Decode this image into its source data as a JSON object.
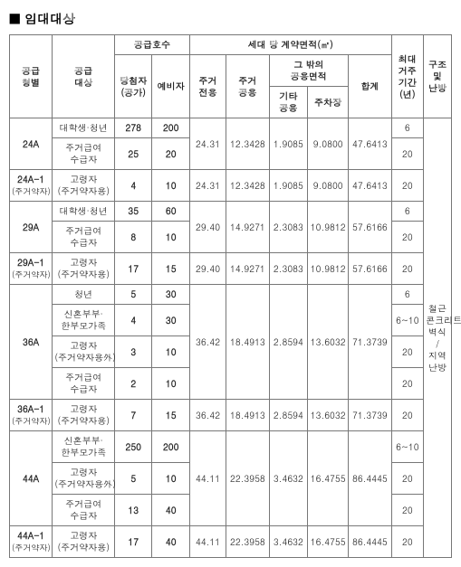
{
  "title": "■ 임대대상",
  "headers": {
    "type": "공급\n형별",
    "target": "공급\n대상",
    "units": "공급호수",
    "units_a": "당첨자\n(공가)",
    "units_b": "예비자",
    "contract_area": "세대 당 계약면적(㎡)",
    "a1": "주거\n전용",
    "a2": "주거\n공용",
    "etc": "그 밖의\n공용면적",
    "a3": "기타\n공용",
    "a4": "주차장",
    "a5": "합계",
    "period": "최대\n거주\n기간\n(년)",
    "structure": "구조\n및\n난방"
  },
  "structure_text": "철근\n콘크리트\n벽식\n/\n지역\n난방",
  "types": [
    {
      "code": "24A",
      "areas": [
        "24.31",
        "12.3428",
        "1.9085",
        "9.0800",
        "47.6413"
      ],
      "rows": [
        {
          "target": "대학생·청년",
          "u1": "278",
          "u2": "200",
          "period": "6"
        },
        {
          "target": "주거급여\n수급자",
          "u1": "25",
          "u2": "20",
          "period": "20"
        }
      ]
    },
    {
      "code": "24A-1",
      "code_sub": "(주거약자)",
      "areas": [
        "24.31",
        "12.3428",
        "1.9085",
        "9.0800",
        "47.6413"
      ],
      "rows": [
        {
          "target": "고령자\n(주거약자용)",
          "u1": "4",
          "u2": "10",
          "period": "20"
        }
      ]
    },
    {
      "code": "29A",
      "areas": [
        "29.40",
        "14.9271",
        "2.3083",
        "10.9812",
        "57.6166"
      ],
      "rows": [
        {
          "target": "대학생·청년",
          "u1": "35",
          "u2": "60",
          "period": "6"
        },
        {
          "target": "주거급여\n수급자",
          "u1": "8",
          "u2": "10",
          "period": "20"
        }
      ]
    },
    {
      "code": "29A-1",
      "code_sub": "(주거약자)",
      "areas": [
        "29.40",
        "14.9271",
        "2.3083",
        "10.9812",
        "57.6166"
      ],
      "rows": [
        {
          "target": "고령자\n(주거약자용)",
          "u1": "17",
          "u2": "15",
          "period": "20"
        }
      ]
    },
    {
      "code": "36A",
      "areas": [
        "36.42",
        "18.4913",
        "2.8594",
        "13.6032",
        "71.3739"
      ],
      "rows": [
        {
          "target": "청년",
          "u1": "5",
          "u2": "30",
          "period": "6"
        },
        {
          "target": "신혼부부·\n한부모가족",
          "u1": "4",
          "u2": "30",
          "period": "6~10"
        },
        {
          "target": "고령자\n(주거약자용外)",
          "u1": "3",
          "u2": "10",
          "period": "20"
        },
        {
          "target": "주거급여\n수급자",
          "u1": "2",
          "u2": "10",
          "period": "20"
        }
      ]
    },
    {
      "code": "36A-1",
      "code_sub": "(주거약자)",
      "areas": [
        "36.42",
        "18.4913",
        "2.8594",
        "13.6032",
        "71.3739"
      ],
      "rows": [
        {
          "target": "고령자\n(주거약자용)",
          "u1": "7",
          "u2": "15",
          "period": "20"
        }
      ]
    },
    {
      "code": "44A",
      "areas": [
        "44.11",
        "22.3958",
        "3.4632",
        "16.4755",
        "86.4445"
      ],
      "rows": [
        {
          "target": "신혼부부·\n한부모가족",
          "u1": "250",
          "u2": "200",
          "period": "6~10"
        },
        {
          "target": "고령자\n(주거약자용外)",
          "u1": "5",
          "u2": "10",
          "period": "20"
        },
        {
          "target": "주거급여\n수급자",
          "u1": "13",
          "u2": "40",
          "period": "20"
        }
      ]
    },
    {
      "code": "44A-1",
      "code_sub": "(주거약자)",
      "areas": [
        "44.11",
        "22.3958",
        "3.4632",
        "16.4755",
        "86.4445"
      ],
      "rows": [
        {
          "target": "고령자\n(주거약자용)",
          "u1": "17",
          "u2": "40",
          "period": "20"
        }
      ]
    }
  ]
}
